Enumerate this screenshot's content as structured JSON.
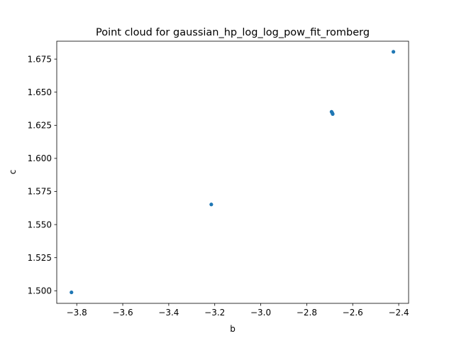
{
  "chart_data": {
    "type": "scatter",
    "title": "Point cloud for gaussian_hp_log_log_pow_fit_romberg",
    "xlabel": "b",
    "ylabel": "c",
    "xlim": [
      -3.887,
      -2.357
    ],
    "ylim": [
      1.4905,
      1.6885
    ],
    "xticks": [
      -3.8,
      -3.6,
      -3.4,
      -3.2,
      -3.0,
      -2.8,
      -2.6,
      -2.4
    ],
    "xtick_labels": [
      "−3.8",
      "−3.6",
      "−3.4",
      "−3.2",
      "−3.0",
      "−2.8",
      "−2.6",
      "−2.4"
    ],
    "yticks": [
      1.5,
      1.525,
      1.55,
      1.575,
      1.6,
      1.625,
      1.65,
      1.675
    ],
    "ytick_labels": [
      "1.500",
      "1.525",
      "1.550",
      "1.575",
      "1.600",
      "1.625",
      "1.650",
      "1.675"
    ],
    "grid": false,
    "marker_color": "#1f77b4",
    "points": [
      {
        "x": -3.823,
        "y": 1.4988
      },
      {
        "x": -3.215,
        "y": 1.5652
      },
      {
        "x": -2.692,
        "y": 1.6352
      },
      {
        "x": -2.689,
        "y": 1.6343
      },
      {
        "x": -2.687,
        "y": 1.6335
      },
      {
        "x": -2.423,
        "y": 1.6805
      }
    ]
  }
}
